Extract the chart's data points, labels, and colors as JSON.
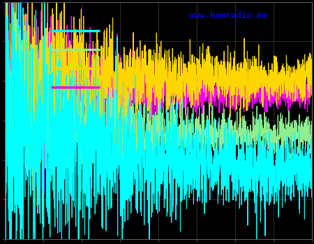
{
  "background_color": "#000000",
  "plot_bg_color": "#000000",
  "grid_color": "#404040",
  "watermark": "www.hamradio.me",
  "watermark_color": "#0000cc",
  "watermark_fontsize": 9,
  "colors_order": [
    "cyan",
    "green",
    "yellow",
    "magenta"
  ],
  "colors": [
    "#00ffff",
    "#90ee90",
    "#ffd700",
    "#ff00ff"
  ],
  "num_points": 2000,
  "tick_color": "#606060",
  "spine_color": "#606060",
  "line_width": 0.8,
  "figsize": [
    4.5,
    3.5
  ],
  "dpi": 100,
  "grid_nx": 8,
  "grid_ny": 6
}
